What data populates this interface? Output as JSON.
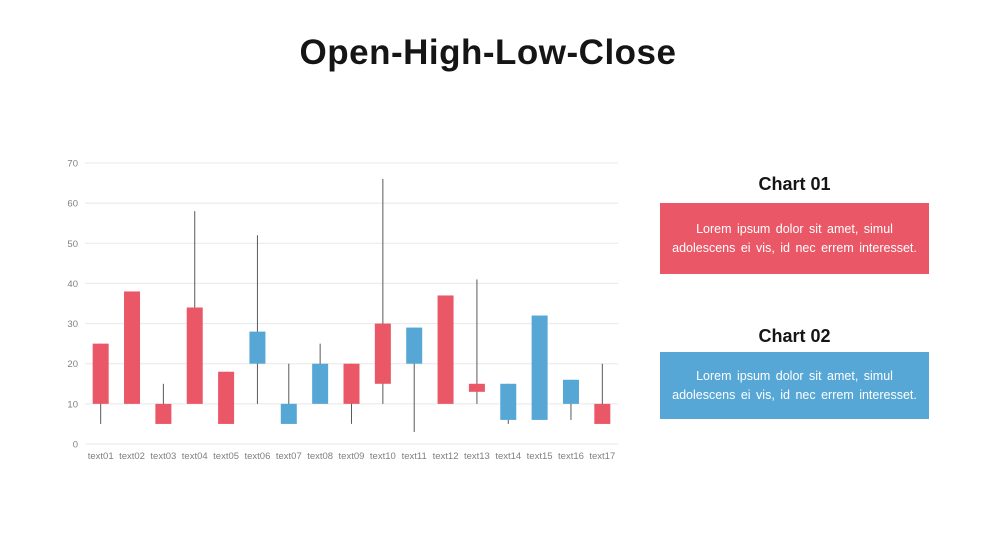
{
  "page": {
    "title": "Open-High-Low-Close"
  },
  "chart_data": {
    "type": "candlestick",
    "title": "Open-High-Low-Close",
    "categories": [
      "text01",
      "text02",
      "text03",
      "text04",
      "text05",
      "text06",
      "text07",
      "text08",
      "text09",
      "text10",
      "text11",
      "text12",
      "text13",
      "text14",
      "text15",
      "text16",
      "text17"
    ],
    "points": [
      {
        "label": "text01",
        "open": 25,
        "high": 25,
        "low": 5,
        "close": 10
      },
      {
        "label": "text02",
        "open": 38,
        "high": 38,
        "low": 10,
        "close": 10
      },
      {
        "label": "text03",
        "open": 10,
        "high": 15,
        "low": 5,
        "close": 5
      },
      {
        "label": "text04",
        "open": 34,
        "high": 58,
        "low": 10,
        "close": 10
      },
      {
        "label": "text05",
        "open": 18,
        "high": 18,
        "low": 5,
        "close": 5
      },
      {
        "label": "text06",
        "open": 20,
        "high": 52,
        "low": 10,
        "close": 28
      },
      {
        "label": "text07",
        "open": 5,
        "high": 20,
        "low": 5,
        "close": 10
      },
      {
        "label": "text08",
        "open": 10,
        "high": 25,
        "low": 10,
        "close": 20
      },
      {
        "label": "text09",
        "open": 20,
        "high": 20,
        "low": 5,
        "close": 10
      },
      {
        "label": "text10",
        "open": 30,
        "high": 66,
        "low": 10,
        "close": 15
      },
      {
        "label": "text11",
        "open": 20,
        "high": 29,
        "low": 3,
        "close": 29
      },
      {
        "label": "text12",
        "open": 37,
        "high": 37,
        "low": 10,
        "close": 10
      },
      {
        "label": "text13",
        "open": 15,
        "high": 41,
        "low": 10,
        "close": 13
      },
      {
        "label": "text14",
        "open": 6,
        "high": 15,
        "low": 5,
        "close": 15
      },
      {
        "label": "text15",
        "open": 6,
        "high": 32,
        "low": 6,
        "close": 32
      },
      {
        "label": "text16",
        "open": 10,
        "high": 16,
        "low": 6,
        "close": 16
      },
      {
        "label": "text17",
        "open": 10,
        "high": 20,
        "low": 5,
        "close": 5
      }
    ],
    "ylim": [
      0,
      70
    ],
    "yticks": [
      0,
      10,
      20,
      30,
      40,
      50,
      60,
      70
    ],
    "grid": true,
    "legend": false,
    "colors": {
      "up": "#56A7D6",
      "down": "#EA5767",
      "wick": "#595959",
      "gridline": "#E8E8E8",
      "axis_label": "#808080"
    }
  },
  "side_panel": {
    "cards": [
      {
        "heading": "Chart 01",
        "body": "Lorem ipsum dolor sit amet, simul adolescens ei vis, id nec errem interesset.",
        "color": "#EA5767"
      },
      {
        "heading": "Chart 02",
        "body": "Lorem ipsum dolor sit amet, simul adolescens ei vis, id nec errem interesset.",
        "color": "#56A7D6"
      }
    ]
  }
}
